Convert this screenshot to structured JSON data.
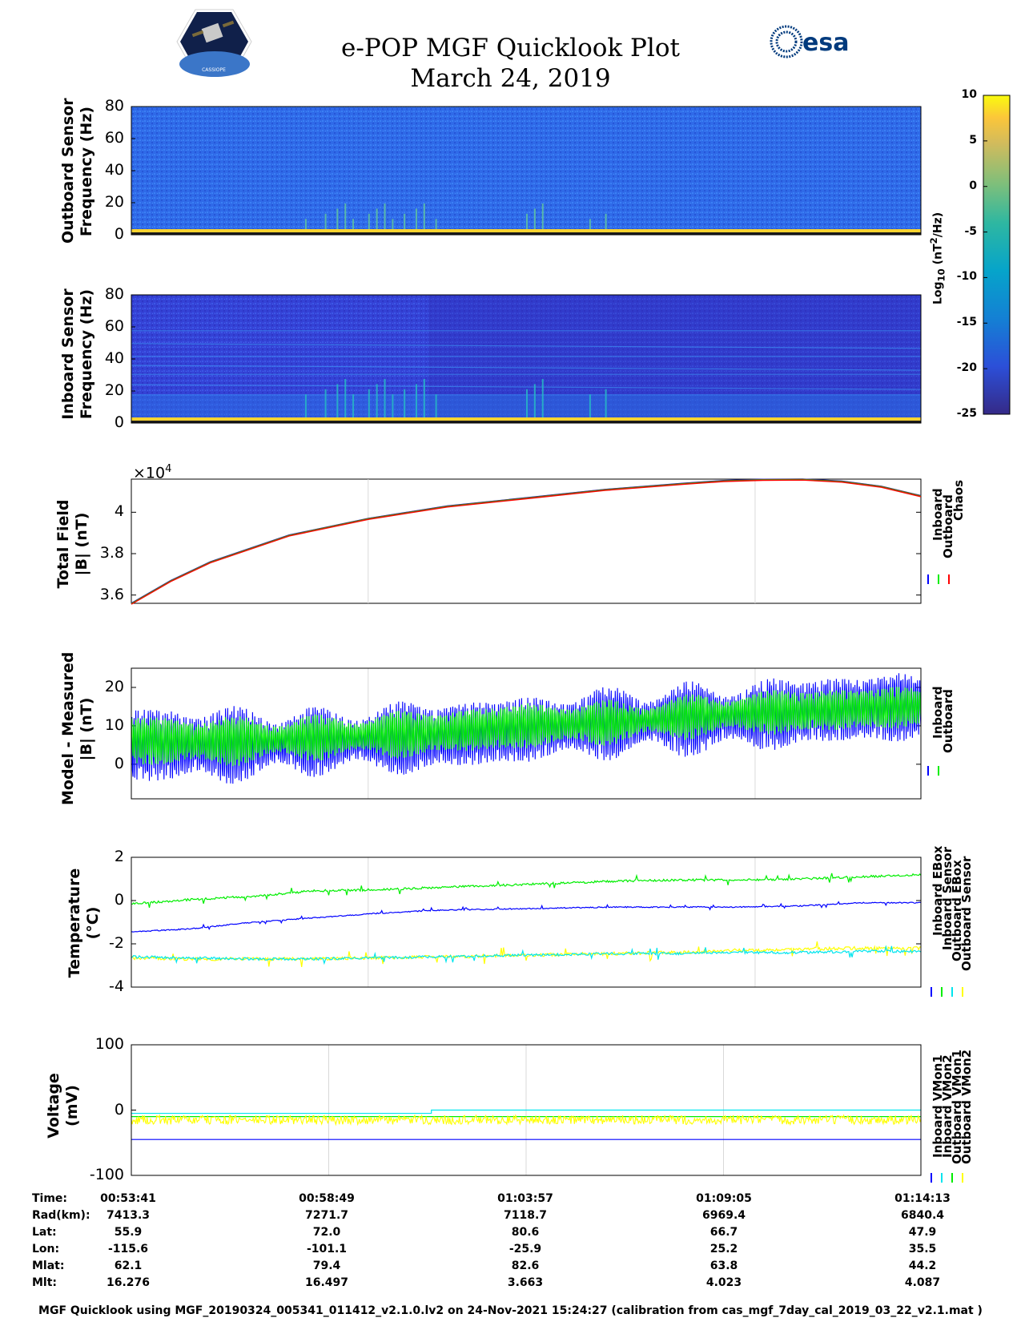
{
  "header": {
    "title_line1": "e-POP MGF Quicklook Plot",
    "title_line2": "March 24, 2019",
    "left_logo_text": "CASSIOPE",
    "right_logo_text": "esa"
  },
  "colors": {
    "inboard": "#0000ff",
    "outboard": "#00ee00",
    "chaos": "#ff0000",
    "cyan": "#00e5ee",
    "yellow": "#ffff00",
    "spec_bg_top": "#2e6cf0",
    "spec_bg_bottom": "#3548dc"
  },
  "chart_data": [
    {
      "type": "heatmap",
      "name": "outboard-spectrogram",
      "ylabel": "Outboard Sensor\nFrequency (Hz)",
      "ylabel_line1": "Outboard Sensor",
      "ylabel_line2": "Frequency (Hz)",
      "ylim": [
        0,
        80
      ],
      "yticks": [
        "80",
        "60",
        "40",
        "20",
        "0"
      ],
      "colorbar": {
        "label": "Log10 (nT^2/Hz)",
        "label_text": "Log",
        "label_sub": "10",
        "label_rest": " (nT",
        "label_sup": "2",
        "label_end": "/Hz)",
        "range": [
          -25,
          10
        ],
        "ticks": [
          "10",
          "5",
          "0",
          "-5",
          "-10",
          "-15",
          "-20",
          "-25"
        ]
      }
    },
    {
      "type": "heatmap",
      "name": "inboard-spectrogram",
      "ylabel_line1": "Inboard Sensor",
      "ylabel_line2": "Frequency (Hz)",
      "ylim": [
        0,
        80
      ],
      "yticks": [
        "80",
        "60",
        "40",
        "20",
        "0"
      ]
    },
    {
      "type": "line",
      "name": "total-field",
      "ylabel_line1": "Total Field",
      "ylabel_line2": "|B| (nT)",
      "exponent_base": "×10",
      "exponent_power": "4",
      "ylim": [
        3.56,
        4.16
      ],
      "yticks": [
        4.0,
        3.8,
        3.6
      ],
      "ytick_labels": [
        "4",
        "3.8",
        "3.6"
      ],
      "x": [
        0,
        0.05,
        0.1,
        0.2,
        0.3,
        0.4,
        0.5,
        0.6,
        0.7,
        0.75,
        0.8,
        0.85,
        0.9,
        0.95,
        1.0
      ],
      "series": [
        {
          "name": "Inboard",
          "values": [
            3.56,
            3.67,
            3.76,
            3.89,
            3.97,
            4.03,
            4.07,
            4.11,
            4.14,
            4.153,
            4.159,
            4.16,
            4.15,
            4.125,
            4.08
          ]
        },
        {
          "name": "Outboard",
          "values": [
            3.56,
            3.67,
            3.76,
            3.89,
            3.97,
            4.03,
            4.07,
            4.11,
            4.14,
            4.153,
            4.159,
            4.16,
            4.15,
            4.125,
            4.08
          ]
        },
        {
          "name": "Chaos",
          "values": [
            3.56,
            3.67,
            3.76,
            3.89,
            3.97,
            4.03,
            4.07,
            4.11,
            4.14,
            4.153,
            4.159,
            4.16,
            4.15,
            4.125,
            4.08
          ]
        }
      ],
      "legend": [
        "Inboard",
        "Outboard",
        "Chaos"
      ]
    },
    {
      "type": "line",
      "name": "model-minus-measured",
      "ylabel_line1": "Model - Measured",
      "ylabel_line2": "|B| (nT)",
      "ylim": [
        -9,
        25
      ],
      "yticks": [
        20,
        10,
        0
      ],
      "ytick_labels": [
        "20",
        "10",
        "0"
      ],
      "series": [
        {
          "name": "Inboard",
          "center": [
            5,
            5,
            6,
            7,
            9,
            11,
            12,
            14,
            15
          ],
          "amplitude": [
            12,
            11,
            9,
            11,
            10,
            10,
            10,
            11,
            10
          ]
        },
        {
          "name": "Outboard",
          "center": [
            6,
            6,
            7,
            8,
            10,
            11,
            13,
            14,
            15
          ],
          "amplitude": [
            8,
            7,
            6,
            7,
            7,
            6,
            6,
            7,
            6
          ]
        }
      ],
      "legend": [
        "Inboard",
        "Outboard"
      ]
    },
    {
      "type": "line",
      "name": "temperature",
      "ylabel_line1": "Temperature",
      "ylabel_line2": "(°C)",
      "ylim": [
        -4,
        2
      ],
      "yticks": [
        2,
        0,
        -2,
        -4
      ],
      "ytick_labels": [
        "2",
        "0",
        "-2",
        "-4"
      ],
      "x": [
        0,
        0.03,
        0.07,
        0.1,
        0.15,
        0.2,
        0.3,
        0.4,
        0.5,
        0.6,
        0.7,
        0.8,
        0.9,
        1.0
      ],
      "series": [
        {
          "name": "Inboard EBox",
          "values": [
            -1.45,
            -1.3,
            -1.0,
            -0.8,
            -0.6,
            -0.45,
            -0.4,
            -0.35,
            -0.3,
            -0.3,
            -0.3,
            -0.25,
            -0.1,
            -0.1
          ]
        },
        {
          "name": "Inboard Sensor",
          "values": [
            -0.15,
            0.05,
            0.2,
            0.45,
            0.5,
            0.6,
            0.7,
            0.8,
            0.9,
            0.95,
            0.95,
            1.0,
            1.1,
            1.2
          ]
        },
        {
          "name": "Outboard EBox",
          "values": [
            -2.6,
            -2.65,
            -2.7,
            -2.7,
            -2.65,
            -2.6,
            -2.55,
            -2.5,
            -2.45,
            -2.45,
            -2.4,
            -2.4,
            -2.35,
            -2.35
          ]
        },
        {
          "name": "Outboard Sensor",
          "values": [
            -2.65,
            -2.7,
            -2.7,
            -2.7,
            -2.65,
            -2.6,
            -2.55,
            -2.5,
            -2.45,
            -2.4,
            -2.3,
            -2.25,
            -2.2,
            -2.2
          ]
        }
      ],
      "legend": [
        "Inboard EBox",
        "Inboard Sensor",
        "Outboard EBox",
        "Outboard Sensor"
      ]
    },
    {
      "type": "line",
      "name": "voltage",
      "ylabel_line1": "Voltage",
      "ylabel_line2": "(mV)",
      "ylim": [
        -100,
        100
      ],
      "yticks": [
        100,
        0,
        -100
      ],
      "ytick_labels": [
        "100",
        "0",
        "-100"
      ],
      "series": [
        {
          "name": "Inboard VMon1",
          "values": [
            -45,
            -45
          ]
        },
        {
          "name": "Inboard VMon2",
          "values": [
            -5,
            0
          ]
        },
        {
          "name": "Outboard VMon1",
          "values": [
            -10,
            -10
          ]
        },
        {
          "name": "Outboard VMon2",
          "values": [
            -15,
            -15
          ]
        }
      ],
      "legend": [
        "Inboard VMon1",
        "Inboard VMon2",
        "Outboard VMon1",
        "Outboard VMon2"
      ]
    }
  ],
  "ephemeris": {
    "labels": [
      "Time:",
      "Rad(km):",
      "Lat:",
      "Lon:",
      "Mlat:",
      "Mlt:"
    ],
    "columns": [
      [
        "00:53:41",
        "7413.3",
        "55.9",
        "-115.6",
        "62.1",
        "16.276"
      ],
      [
        "00:58:49",
        "7271.7",
        "72.0",
        "-101.1",
        "79.4",
        "16.497"
      ],
      [
        "01:03:57",
        "7118.7",
        "80.6",
        "-25.9",
        "82.6",
        "3.663"
      ],
      [
        "01:09:05",
        "6969.4",
        "66.7",
        "25.2",
        "63.8",
        "4.023"
      ],
      [
        "01:14:13",
        "6840.4",
        "47.9",
        "35.5",
        "44.2",
        "4.087"
      ]
    ]
  },
  "footer": "MGF Quicklook using MGF_20190324_005341_011412_v2.1.0.lv2 on 24-Nov-2021 15:24:27 (calibration from cas_mgf_7day_cal_2019_03_22_v2.1.mat )"
}
